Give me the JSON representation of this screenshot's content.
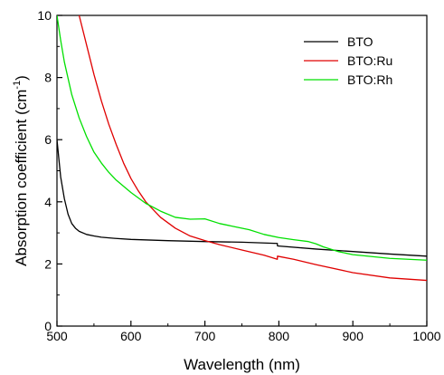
{
  "chart_data": {
    "type": "line",
    "title": "",
    "xlabel": "Wavelength (nm)",
    "ylabel": {
      "prefix": "Absorption coefficient  (cm",
      "superscript": "-1",
      "suffix": ")"
    },
    "xlim": [
      500,
      1000
    ],
    "ylim": [
      0,
      10
    ],
    "x_ticks": [
      "500",
      "600",
      "700",
      "800",
      "900",
      "1000"
    ],
    "y_ticks": [
      "0",
      "2",
      "4",
      "6",
      "8",
      "10"
    ],
    "grid": false,
    "legend_position": "top-right",
    "series": [
      {
        "name": "BTO",
        "color": "#000000",
        "x": [
          500,
          505,
          510,
          515,
          520,
          525,
          530,
          540,
          550,
          560,
          580,
          600,
          650,
          700,
          750,
          797.9,
          798.1,
          850,
          900,
          950,
          1000
        ],
        "y": [
          6.0,
          4.8,
          4.1,
          3.6,
          3.3,
          3.15,
          3.05,
          2.95,
          2.9,
          2.86,
          2.82,
          2.79,
          2.75,
          2.72,
          2.7,
          2.66,
          2.58,
          2.48,
          2.4,
          2.32,
          2.25
        ]
      },
      {
        "name": "BTO:Ru",
        "color": "#e00000",
        "x": [
          530,
          540,
          550,
          560,
          570,
          580,
          590,
          600,
          610,
          620,
          640,
          660,
          680,
          700,
          720,
          750,
          780,
          797.9,
          798.1,
          820,
          850,
          900,
          950,
          1000
        ],
        "y": [
          10.0,
          9.05,
          8.1,
          7.25,
          6.5,
          5.85,
          5.25,
          4.75,
          4.35,
          4.0,
          3.5,
          3.15,
          2.9,
          2.75,
          2.62,
          2.45,
          2.28,
          2.15,
          2.25,
          2.15,
          1.98,
          1.72,
          1.55,
          1.47
        ]
      },
      {
        "name": "BTO:Rh",
        "color": "#00e000",
        "x": [
          500,
          505,
          510,
          520,
          530,
          540,
          550,
          560,
          570,
          580,
          600,
          620,
          640,
          660,
          680,
          700,
          720,
          740,
          760,
          780,
          800,
          820,
          840,
          850,
          860,
          880,
          900,
          950,
          1000
        ],
        "y": [
          10.0,
          9.2,
          8.5,
          7.45,
          6.7,
          6.1,
          5.6,
          5.25,
          4.95,
          4.7,
          4.3,
          3.95,
          3.7,
          3.5,
          3.44,
          3.45,
          3.3,
          3.2,
          3.1,
          2.95,
          2.85,
          2.78,
          2.72,
          2.65,
          2.55,
          2.4,
          2.3,
          2.18,
          2.12
        ]
      }
    ]
  }
}
